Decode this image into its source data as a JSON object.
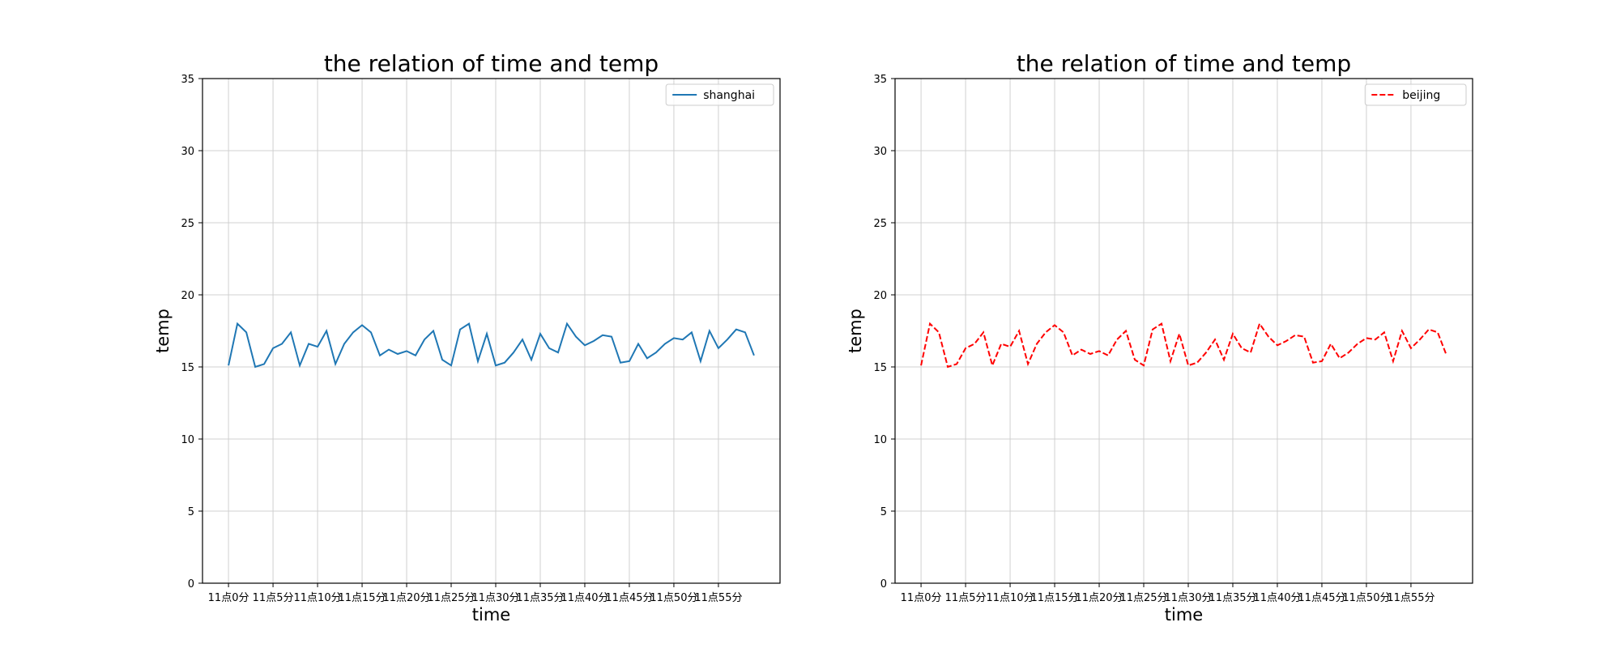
{
  "chart_data": [
    {
      "type": "line",
      "title": "the relation of time and temp",
      "xlabel": "time",
      "ylabel": "temp",
      "ylim": [
        0,
        35
      ],
      "yticks": [
        0,
        5,
        10,
        15,
        20,
        25,
        30,
        35
      ],
      "x_tick_labels": [
        "11点0分",
        "11点5分",
        "11点10分",
        "11点15分",
        "11点20分",
        "11点25分",
        "11点30分",
        "11点35分",
        "11点40分",
        "11点45分",
        "11点50分",
        "11点55分"
      ],
      "grid": true,
      "legend_position": "top-right",
      "series": [
        {
          "name": "shanghai",
          "color": "#1f77b4",
          "line_style": "solid",
          "x": [
            0,
            1,
            2,
            3,
            4,
            5,
            6,
            7,
            8,
            9,
            10,
            11,
            12,
            13,
            14,
            15,
            16,
            17,
            18,
            19,
            20,
            21,
            22,
            23,
            24,
            25,
            26,
            27,
            28,
            29,
            30,
            31,
            32,
            33,
            34,
            35,
            36,
            37,
            38,
            39,
            40,
            41,
            42,
            43,
            44,
            45,
            46,
            47,
            48,
            49,
            50,
            51,
            52,
            53,
            54,
            55,
            56,
            57,
            58,
            59
          ],
          "values": [
            15.1,
            18.0,
            17.4,
            15.0,
            15.2,
            16.3,
            16.6,
            17.4,
            15.1,
            16.6,
            16.4,
            17.5,
            15.2,
            16.6,
            17.4,
            17.9,
            17.4,
            15.8,
            16.2,
            15.9,
            16.1,
            15.8,
            16.9,
            17.5,
            15.5,
            15.1,
            17.6,
            18.0,
            15.4,
            17.3,
            15.1,
            15.3,
            16.0,
            16.9,
            15.5,
            17.3,
            16.3,
            16.0,
            18.0,
            17.1,
            16.5,
            16.8,
            17.2,
            17.1,
            15.3,
            15.4,
            16.6,
            15.6,
            16.0,
            16.6,
            17.0,
            16.9,
            17.4,
            15.4,
            17.5,
            16.3,
            16.9,
            17.6,
            17.4,
            15.8
          ]
        }
      ]
    },
    {
      "type": "line",
      "title": "the relation of time and temp",
      "xlabel": "time",
      "ylabel": "temp",
      "ylim": [
        0,
        35
      ],
      "yticks": [
        0,
        5,
        10,
        15,
        20,
        25,
        30,
        35
      ],
      "x_tick_labels": [
        "11点0分",
        "11点5分",
        "11点10分",
        "11点15分",
        "11点20分",
        "11点25分",
        "11点30分",
        "11点35分",
        "11点40分",
        "11点45分",
        "11点50分",
        "11点55分"
      ],
      "grid": true,
      "legend_position": "top-right",
      "series": [
        {
          "name": "beijing",
          "color": "#ff0000",
          "line_style": "dashed",
          "x": [
            0,
            1,
            2,
            3,
            4,
            5,
            6,
            7,
            8,
            9,
            10,
            11,
            12,
            13,
            14,
            15,
            16,
            17,
            18,
            19,
            20,
            21,
            22,
            23,
            24,
            25,
            26,
            27,
            28,
            29,
            30,
            31,
            32,
            33,
            34,
            35,
            36,
            37,
            38,
            39,
            40,
            41,
            42,
            43,
            44,
            45,
            46,
            47,
            48,
            49,
            50,
            51,
            52,
            53,
            54,
            55,
            56,
            57,
            58,
            59
          ],
          "values": [
            15.1,
            18.0,
            17.4,
            15.0,
            15.2,
            16.3,
            16.6,
            17.4,
            15.1,
            16.6,
            16.4,
            17.5,
            15.2,
            16.6,
            17.4,
            17.9,
            17.4,
            15.8,
            16.2,
            15.9,
            16.1,
            15.8,
            16.9,
            17.5,
            15.5,
            15.1,
            17.6,
            18.0,
            15.4,
            17.3,
            15.1,
            15.3,
            16.0,
            16.9,
            15.5,
            17.3,
            16.3,
            16.0,
            18.0,
            17.1,
            16.5,
            16.8,
            17.2,
            17.1,
            15.3,
            15.4,
            16.6,
            15.6,
            16.0,
            16.6,
            17.0,
            16.9,
            17.4,
            15.4,
            17.5,
            16.3,
            16.9,
            17.6,
            17.4,
            15.8
          ]
        }
      ]
    }
  ]
}
